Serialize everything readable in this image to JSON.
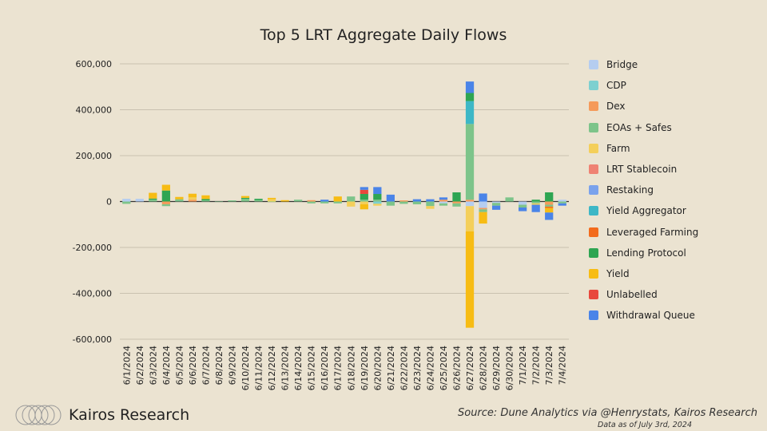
{
  "chart_data": {
    "type": "bar",
    "stacked": true,
    "title": "Top 5 LRT Aggregate Daily Flows",
    "xlabel": "",
    "ylabel": "",
    "ylim": [
      -600000,
      600000
    ],
    "yticks": [
      600000,
      400000,
      200000,
      0,
      -200000,
      -400000,
      -600000
    ],
    "ytick_labels": [
      "600,000",
      "400,000",
      "200,000",
      "0",
      "-200,000",
      "-400,000",
      "-600,000"
    ],
    "categories": [
      "6/1/2024",
      "6/2/2024",
      "6/3/2024",
      "6/4/2024",
      "6/5/2024",
      "6/6/2024",
      "6/7/2024",
      "6/8/2024",
      "6/9/2024",
      "6/10/2024",
      "6/11/2024",
      "6/12/2024",
      "6/13/2024",
      "6/14/2024",
      "6/15/2024",
      "6/16/2024",
      "6/17/2024",
      "6/18/2024",
      "6/19/2024",
      "6/20/2024",
      "6/21/2024",
      "6/22/2024",
      "6/23/2024",
      "6/24/2024",
      "6/25/2024",
      "6/26/2024",
      "6/27/2024",
      "6/28/2024",
      "6/29/2024",
      "6/30/2024",
      "7/1/2024",
      "7/2/2024",
      "7/3/2024",
      "7/4/2024"
    ],
    "series": [
      {
        "name": "Bridge",
        "color": "#b5cdf0",
        "values": [
          12000,
          12000,
          0,
          0,
          0,
          0,
          0,
          0,
          0,
          0,
          0,
          0,
          0,
          0,
          0,
          0,
          0,
          0,
          0,
          0,
          0,
          0,
          0,
          0,
          -8000,
          0,
          -20000,
          -28000,
          -6000,
          0,
          -14000,
          0,
          0,
          8000
        ]
      },
      {
        "name": "CDP",
        "color": "#7dd0d0",
        "values": [
          0,
          0,
          0,
          0,
          0,
          0,
          0,
          0,
          0,
          0,
          0,
          0,
          0,
          0,
          0,
          0,
          0,
          0,
          0,
          -10000,
          0,
          0,
          0,
          0,
          0,
          0,
          0,
          0,
          0,
          0,
          0,
          0,
          0,
          0
        ]
      },
      {
        "name": "Dex",
        "color": "#f59a5a",
        "values": [
          0,
          0,
          0,
          -12000,
          0,
          8000,
          0,
          0,
          0,
          0,
          0,
          0,
          0,
          0,
          6000,
          0,
          0,
          0,
          0,
          0,
          0,
          5000,
          0,
          0,
          8000,
          -8000,
          8000,
          -6000,
          0,
          0,
          0,
          0,
          -14000,
          0
        ]
      },
      {
        "name": "EOAs + Safes",
        "color": "#7dc48a",
        "values": [
          -10000,
          0,
          8000,
          -8000,
          10000,
          0,
          5000,
          -2000,
          5000,
          12000,
          6000,
          -2000,
          0,
          8000,
          -8000,
          -8000,
          -8000,
          22000,
          8000,
          8000,
          -18000,
          -10000,
          -12000,
          -20000,
          -10000,
          -14000,
          330000,
          -12000,
          -12000,
          18000,
          -12000,
          -8000,
          -8000,
          -8000
        ]
      },
      {
        "name": "Farm",
        "color": "#f4cf5a",
        "values": [
          0,
          0,
          0,
          0,
          0,
          10000,
          0,
          0,
          0,
          0,
          0,
          10000,
          0,
          0,
          0,
          0,
          0,
          -22000,
          -12000,
          -8000,
          0,
          0,
          0,
          -12000,
          0,
          0,
          -110000,
          0,
          0,
          0,
          0,
          -6000,
          0,
          0
        ]
      },
      {
        "name": "LRT Stablecoin",
        "color": "#ef8273",
        "values": [
          0,
          0,
          0,
          0,
          0,
          0,
          0,
          0,
          0,
          0,
          0,
          0,
          0,
          0,
          0,
          0,
          0,
          0,
          0,
          0,
          0,
          0,
          0,
          0,
          0,
          0,
          0,
          0,
          0,
          0,
          0,
          0,
          0,
          0
        ]
      },
      {
        "name": "Restaking",
        "color": "#7aa2ec",
        "values": [
          0,
          0,
          0,
          0,
          0,
          0,
          0,
          0,
          0,
          0,
          0,
          0,
          0,
          0,
          0,
          0,
          0,
          0,
          0,
          0,
          0,
          0,
          0,
          0,
          0,
          0,
          0,
          0,
          0,
          0,
          0,
          0,
          0,
          0
        ]
      },
      {
        "name": "Yield Aggregator",
        "color": "#3db7c6",
        "values": [
          0,
          0,
          0,
          0,
          0,
          0,
          0,
          0,
          0,
          0,
          0,
          0,
          0,
          0,
          0,
          0,
          0,
          0,
          0,
          0,
          0,
          0,
          0,
          0,
          0,
          0,
          100000,
          0,
          0,
          0,
          0,
          0,
          0,
          0
        ]
      },
      {
        "name": "Leveraged Farming",
        "color": "#f36b1c",
        "values": [
          0,
          0,
          0,
          0,
          0,
          0,
          0,
          0,
          0,
          0,
          0,
          0,
          0,
          0,
          0,
          0,
          0,
          0,
          0,
          0,
          0,
          0,
          0,
          0,
          0,
          0,
          0,
          0,
          0,
          0,
          0,
          0,
          -6000,
          0
        ]
      },
      {
        "name": "Lending Protocol",
        "color": "#2ea552",
        "values": [
          0,
          0,
          5000,
          48000,
          0,
          0,
          6000,
          0,
          0,
          4000,
          6000,
          0,
          0,
          0,
          0,
          0,
          0,
          0,
          25000,
          25000,
          0,
          0,
          0,
          0,
          0,
          40000,
          35000,
          0,
          0,
          0,
          0,
          8000,
          40000,
          0
        ]
      },
      {
        "name": "Yield",
        "color": "#f7bc14",
        "values": [
          0,
          0,
          25000,
          25000,
          10000,
          16000,
          16000,
          0,
          0,
          8000,
          0,
          6000,
          6000,
          0,
          0,
          0,
          22000,
          0,
          -22000,
          0,
          0,
          0,
          0,
          0,
          0,
          0,
          -420000,
          -50000,
          0,
          0,
          0,
          0,
          -20000,
          0
        ]
      },
      {
        "name": "Unlabelled",
        "color": "#e8483c",
        "values": [
          0,
          0,
          0,
          0,
          0,
          0,
          0,
          0,
          0,
          0,
          0,
          0,
          0,
          0,
          0,
          0,
          0,
          0,
          18000,
          0,
          0,
          0,
          0,
          0,
          0,
          0,
          0,
          0,
          0,
          0,
          0,
          0,
          0,
          0
        ]
      },
      {
        "name": "Withdrawal Queue",
        "color": "#4a84e8",
        "values": [
          0,
          0,
          0,
          0,
          0,
          0,
          0,
          0,
          0,
          0,
          0,
          0,
          0,
          0,
          0,
          8000,
          0,
          0,
          12000,
          30000,
          30000,
          0,
          10000,
          10000,
          10000,
          0,
          50000,
          35000,
          -18000,
          0,
          -16000,
          -32000,
          -32000,
          -10000
        ]
      }
    ]
  },
  "footer": {
    "brand": "Kairos Research",
    "source": "Source: Dune Analytics via @Henrystats, Kairos Research",
    "as_of": "Data as of July 3rd, 2024"
  }
}
